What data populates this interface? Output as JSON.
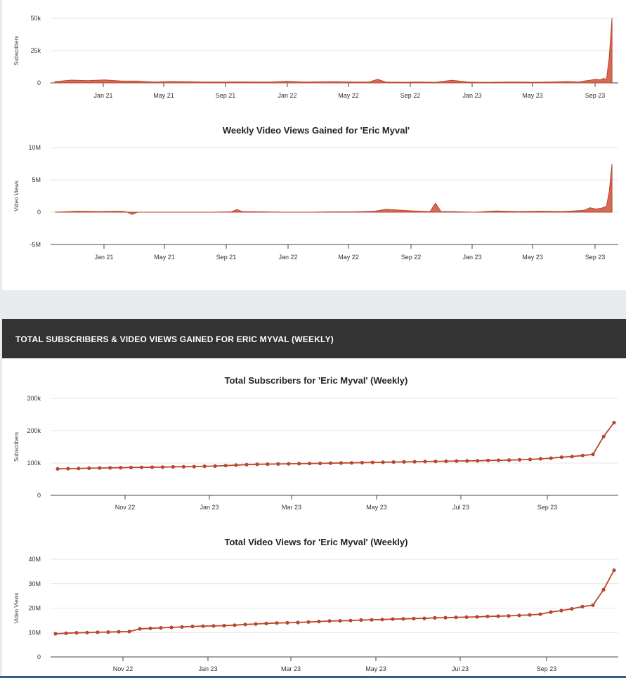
{
  "section_header": "TOTAL SUBSCRIBERS & VIDEO VIEWS GAINED FOR ERIC MYVAL (WEEKLY)",
  "colors": {
    "series": "#b9472d",
    "fill": "#cf5b42",
    "header_bg": "#333333"
  },
  "chart_data": [
    {
      "type": "area",
      "title": "",
      "ylabel": "Subscribers",
      "ylim": [
        0,
        50000
      ],
      "yticks": [
        {
          "value": 50000,
          "label": "50k"
        },
        {
          "value": 25000,
          "label": "25k"
        },
        {
          "value": 0,
          "label": "0"
        }
      ],
      "xticks": [
        "Jan 21",
        "May 21",
        "Sep 21",
        "Jan 22",
        "May 22",
        "Sep 22",
        "Jan 23",
        "May 23",
        "Sep 23"
      ],
      "xlim": [
        0,
        1015
      ],
      "x": [
        0,
        30,
        60,
        90,
        120,
        150,
        180,
        210,
        240,
        270,
        300,
        330,
        360,
        390,
        420,
        450,
        480,
        510,
        540,
        570,
        585,
        600,
        630,
        660,
        690,
        720,
        750,
        780,
        810,
        840,
        870,
        900,
        930,
        950,
        960,
        970,
        980,
        985,
        990,
        995,
        1000,
        1005,
        1010
      ],
      "values": [
        1000,
        2200,
        1800,
        2300,
        1500,
        1400,
        700,
        1100,
        900,
        700,
        600,
        800,
        700,
        600,
        1300,
        700,
        800,
        900,
        700,
        700,
        2800,
        700,
        500,
        700,
        500,
        2000,
        700,
        400,
        600,
        700,
        500,
        700,
        1100,
        700,
        1500,
        2000,
        2800,
        2500,
        2600,
        3500,
        2500,
        20000,
        50000
      ]
    },
    {
      "type": "area",
      "title": "Weekly Video Views Gained for 'Eric Myval'",
      "ylabel": "Video Views",
      "ylim": [
        -5000000,
        10000000
      ],
      "yticks": [
        {
          "value": 10000000,
          "label": "10M"
        },
        {
          "value": 5000000,
          "label": "5M"
        },
        {
          "value": 0,
          "label": "0"
        },
        {
          "value": -5000000,
          "label": "-5M"
        }
      ],
      "xticks": [
        "Jan 21",
        "May 21",
        "Sep 21",
        "Jan 22",
        "May 22",
        "Sep 22",
        "Jan 23",
        "May 23",
        "Sep 23"
      ],
      "xlim": [
        0,
        1015
      ],
      "x": [
        0,
        40,
        80,
        120,
        130,
        140,
        150,
        160,
        200,
        240,
        280,
        320,
        330,
        340,
        380,
        420,
        460,
        500,
        540,
        580,
        600,
        650,
        680,
        690,
        700,
        720,
        760,
        800,
        840,
        880,
        920,
        940,
        960,
        970,
        980,
        990,
        1000,
        1005,
        1010
      ],
      "values": [
        0,
        150000,
        100000,
        150000,
        50000,
        -350000,
        0,
        0,
        0,
        0,
        0,
        50000,
        400000,
        100000,
        50000,
        0,
        0,
        50000,
        50000,
        150000,
        450000,
        200000,
        100000,
        1400000,
        100000,
        100000,
        0,
        200000,
        100000,
        150000,
        100000,
        200000,
        300000,
        700000,
        500000,
        600000,
        900000,
        3200000,
        7500000
      ]
    },
    {
      "type": "line",
      "title": "Total Subscribers for 'Eric Myval' (Weekly)",
      "ylabel": "Subscribers",
      "ylim": [
        0,
        300000
      ],
      "yticks": [
        {
          "value": 300000,
          "label": "300k"
        },
        {
          "value": 200000,
          "label": "200k"
        },
        {
          "value": 100000,
          "label": "100k"
        },
        {
          "value": 0,
          "label": "0"
        }
      ],
      "xticks": [
        "Nov 22",
        "Jan 23",
        "Mar 23",
        "May 23",
        "Jul 23",
        "Sep 23"
      ],
      "values": [
        82000,
        82500,
        83000,
        84000,
        84500,
        85000,
        85500,
        86000,
        86500,
        87000,
        87500,
        88000,
        88500,
        89000,
        90000,
        90500,
        92000,
        93500,
        95000,
        96000,
        96500,
        97000,
        97500,
        98000,
        98500,
        99000,
        99500,
        100000,
        100500,
        101000,
        102000,
        102500,
        103000,
        103500,
        104000,
        104500,
        105000,
        105500,
        106000,
        106500,
        107000,
        108000,
        108500,
        109000,
        110000,
        111000,
        113000,
        115000,
        118000,
        120000,
        123000,
        127000,
        182000,
        225000
      ]
    },
    {
      "type": "line",
      "title": "Total Video Views for 'Eric Myval' (Weekly)",
      "ylabel": "Video Views",
      "ylim": [
        0,
        40000000
      ],
      "yticks": [
        {
          "value": 40000000,
          "label": "40M"
        },
        {
          "value": 30000000,
          "label": "30M"
        },
        {
          "value": 20000000,
          "label": "20M"
        },
        {
          "value": 10000000,
          "label": "10M"
        },
        {
          "value": 0,
          "label": "0"
        }
      ],
      "xticks": [
        "Nov 22",
        "Jan 23",
        "Mar 23",
        "May 23",
        "Jul 23",
        "Sep 23"
      ],
      "values": [
        9500000,
        9700000,
        9900000,
        10000000,
        10100000,
        10200000,
        10300000,
        10400000,
        11500000,
        11700000,
        11900000,
        12100000,
        12300000,
        12500000,
        12600000,
        12700000,
        12800000,
        13000000,
        13300000,
        13500000,
        13700000,
        13900000,
        14000000,
        14100000,
        14300000,
        14500000,
        14700000,
        14800000,
        14900000,
        15100000,
        15200000,
        15300000,
        15500000,
        15600000,
        15700000,
        15800000,
        16000000,
        16100000,
        16200000,
        16300000,
        16400000,
        16600000,
        16700000,
        16800000,
        17000000,
        17200000,
        17500000,
        18400000,
        19000000,
        19700000,
        20600000,
        21200000,
        27500000,
        35500000
      ]
    }
  ]
}
